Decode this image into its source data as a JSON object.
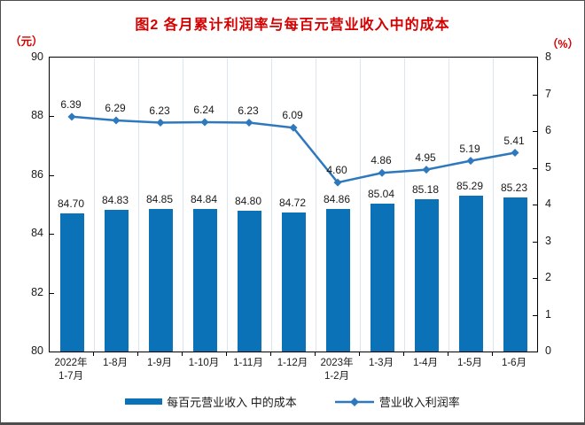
{
  "page": {
    "background": "#ffffff",
    "frame_border_color": "#4d4d4d"
  },
  "chart_data": {
    "type": "bar",
    "title": "图2 各月累计利润率与每百元营业收入中的成本",
    "title_color": "#d40000",
    "unit_label_color": "#d40000",
    "categories": [
      [
        "2022年",
        "1-7月"
      ],
      [
        "1-8月"
      ],
      [
        "1-9月"
      ],
      [
        "1-10月"
      ],
      [
        "1-11月"
      ],
      [
        "1-12月"
      ],
      [
        "2023年",
        "1-2月"
      ],
      [
        "1-3月"
      ],
      [
        "1-4月"
      ],
      [
        "1-5月"
      ],
      [
        "1-6月"
      ]
    ],
    "series": [
      {
        "name": "每百元营业收入 中的成本",
        "type": "bar",
        "axis": "left",
        "color": "#0b72b8",
        "values": [
          84.7,
          84.83,
          84.85,
          84.84,
          84.8,
          84.72,
          84.86,
          85.04,
          85.18,
          85.29,
          85.23
        ]
      },
      {
        "name": "营业收入利润率",
        "type": "line",
        "axis": "right",
        "color": "#2e79bd",
        "values": [
          6.39,
          6.29,
          6.23,
          6.24,
          6.23,
          6.09,
          4.6,
          4.86,
          4.95,
          5.19,
          5.41
        ]
      }
    ],
    "left_axis": {
      "unit": "（元）",
      "min": 80,
      "max": 90,
      "step": 2,
      "ticks": [
        "90",
        "88",
        "86",
        "84",
        "82",
        "80"
      ]
    },
    "right_axis": {
      "unit": "（%）",
      "min": 0,
      "max": 8,
      "step": 1,
      "ticks": [
        "8",
        "7",
        "6",
        "5",
        "4",
        "3",
        "2",
        "1",
        "0"
      ]
    },
    "value_label_decimals": 2,
    "grid": "vertical-light",
    "gridline_color": "#dbe5f1",
    "legend_position": "bottom"
  }
}
